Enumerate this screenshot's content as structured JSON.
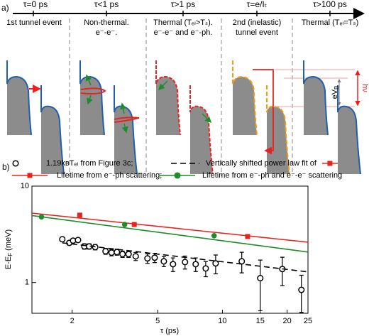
{
  "panel_a": {
    "label": "a)",
    "stages": [
      {
        "time": "τ=0 ps",
        "caption": [
          "1st tunnel event"
        ]
      },
      {
        "time": "τ<1 ps",
        "caption": [
          "Non-thermal.",
          "e⁻-e⁻."
        ]
      },
      {
        "time": "τ>1 ps",
        "caption": [
          "Thermal (Tₑₗ>Tₛ).",
          "e⁻-e⁻ and e⁻-ph."
        ]
      },
      {
        "time": "τ=e/Iₜ",
        "caption": [
          "2nd (inelastic)",
          "tunnel event"
        ]
      },
      {
        "time": "τ>100 ps",
        "caption": [
          "Thermal (Tₑₗ=Tₛ)"
        ]
      }
    ],
    "annotations": {
      "ev": "eV",
      "ev_sub": "B",
      "hnu": "hν"
    }
  },
  "chart_data": {
    "type": "line",
    "panel_label": "b)",
    "xlabel": "τ (ps)",
    "ylabel": {
      "main": "E-E",
      "sub": "F",
      "unit": " (meV)"
    },
    "xscale": "log",
    "yscale": "log",
    "xlim": [
      1.3,
      25
    ],
    "ylim": [
      0.48,
      10
    ],
    "xticks": [
      2,
      5,
      10,
      15,
      20,
      25
    ],
    "yticks": [
      1,
      10
    ],
    "series": [
      {
        "name": "1.19kʙTₑₗ from Figure 3c;",
        "color": "#000000",
        "marker": "circle-open",
        "x": [
          1.8,
          1.94,
          2.02,
          2.13,
          2.28,
          2.4,
          2.56,
          2.86,
          3.05,
          3.23,
          3.43,
          3.66,
          3.95,
          4.48,
          4.84,
          5.34,
          5.89,
          6.7,
          7.51,
          8.36,
          9.3,
          12.3,
          15.0,
          19.0,
          23.3
        ],
        "values": [
          2.81,
          2.58,
          2.72,
          2.76,
          2.37,
          2.37,
          2.33,
          2.11,
          2.04,
          2.07,
          1.97,
          1.97,
          1.87,
          1.78,
          1.81,
          1.66,
          1.55,
          1.63,
          1.55,
          1.4,
          1.58,
          1.66,
          1.11,
          1.38,
          0.84
        ],
        "errors": [
          0.15,
          0.12,
          0.12,
          0.12,
          0.15,
          0.15,
          0.15,
          0.15,
          0.15,
          0.15,
          0.15,
          0.15,
          0.18,
          0.2,
          0.2,
          0.2,
          0.25,
          0.25,
          0.25,
          0.25,
          0.35,
          0.4,
          0.6,
          0.45,
          0.35
        ]
      },
      {
        "name": "Vertically shifted power law fit of",
        "color": "#000000",
        "dash": true,
        "x": [
          1.8,
          25
        ],
        "values": [
          2.58,
          1.29
        ]
      },
      {
        "name": "Lifetime from e⁻-ph scattering;",
        "color": "#e8231f",
        "marker": "square",
        "x": [
          2.17,
          3.89,
          13.1
        ],
        "values": [
          5.0,
          4.0,
          3.0
        ],
        "line_x": [
          1.3,
          25
        ],
        "line_values": [
          5.25,
          2.62
        ]
      },
      {
        "name": "Lifetime from e⁻-ph and e⁻-e⁻ scattering",
        "color": "#1e8c2a",
        "marker": "circle",
        "x": [
          1.44,
          3.51,
          9.15
        ],
        "values": [
          4.8,
          4.0,
          3.06
        ],
        "line_x": [
          1.3,
          25
        ],
        "line_values": [
          4.95,
          2.07
        ]
      }
    ]
  }
}
